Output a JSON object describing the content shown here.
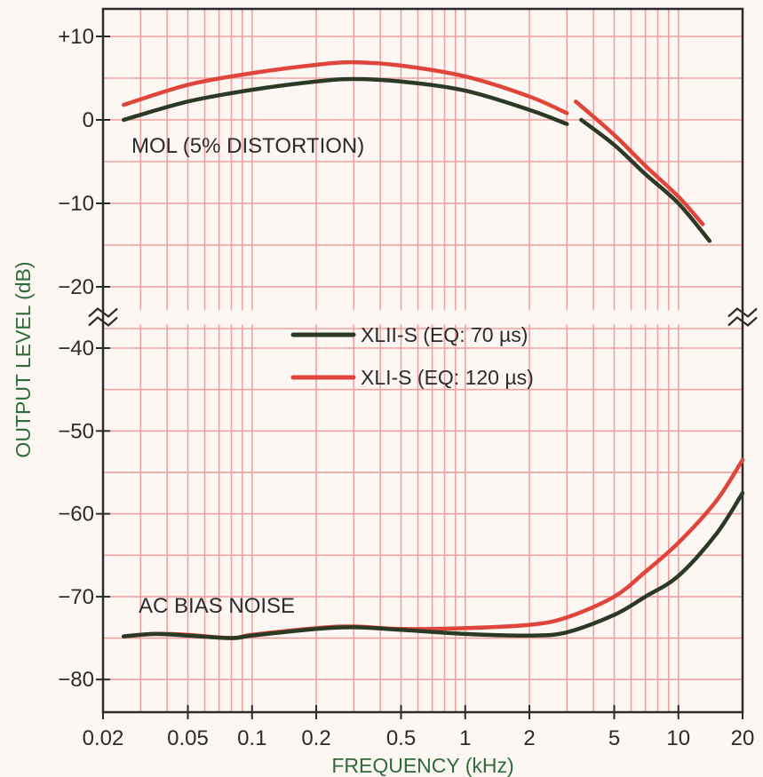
{
  "chart_data": {
    "type": "line",
    "xlabel": "FREQUENCY (kHz)",
    "ylabel": "OUTPUT LEVEL (dB)",
    "x_scale": "log",
    "xlim": [
      0.02,
      20
    ],
    "x_ticks": [
      {
        "value": 0.02,
        "label": "0.02"
      },
      {
        "value": 0.05,
        "label": "0.05"
      },
      {
        "value": 0.1,
        "label": "0.1"
      },
      {
        "value": 0.2,
        "label": "0.2"
      },
      {
        "value": 0.5,
        "label": "0.5"
      },
      {
        "value": 1,
        "label": "1"
      },
      {
        "value": 2,
        "label": "2"
      },
      {
        "value": 5,
        "label": "5"
      },
      {
        "value": 10,
        "label": "10"
      },
      {
        "value": 20,
        "label": "20"
      }
    ],
    "y_ticks_upper": [
      {
        "value": 10,
        "label": "+10"
      },
      {
        "value": 0,
        "label": "0"
      },
      {
        "value": -10,
        "label": "−10"
      },
      {
        "value": -20,
        "label": "−20"
      }
    ],
    "y_ticks_lower": [
      {
        "value": -40,
        "label": "−40"
      },
      {
        "value": -50,
        "label": "−50"
      },
      {
        "value": -60,
        "label": "−60"
      },
      {
        "value": -70,
        "label": "−70"
      },
      {
        "value": -80,
        "label": "−80"
      }
    ],
    "y_axis_break": {
      "from": -20,
      "to": -40
    },
    "grid": true,
    "legend_position": "center",
    "annotations": {
      "mol": "MOL (5% DISTORTION)",
      "noise": "AC BIAS NOISE"
    },
    "series": [
      {
        "name": "XLII-S (EQ: 70 µs)",
        "color": "#2a3a25",
        "mol_segments": [
          [
            [
              0.025,
              0
            ],
            [
              0.05,
              2.2
            ],
            [
              0.1,
              3.6
            ],
            [
              0.2,
              4.6
            ],
            [
              0.3,
              4.9
            ],
            [
              0.5,
              4.6
            ],
            [
              1,
              3.5
            ],
            [
              2,
              1.2
            ],
            [
              3,
              -0.5
            ]
          ],
          [
            [
              3.5,
              0
            ],
            [
              5,
              -3
            ],
            [
              7,
              -6.5
            ],
            [
              10,
              -10
            ],
            [
              14,
              -14.5
            ]
          ]
        ],
        "noise": [
          [
            0.025,
            -74.8
          ],
          [
            0.035,
            -74.5
          ],
          [
            0.05,
            -74.7
          ],
          [
            0.08,
            -75
          ],
          [
            0.1,
            -74.7
          ],
          [
            0.2,
            -73.9
          ],
          [
            0.3,
            -73.7
          ],
          [
            0.5,
            -74
          ],
          [
            1,
            -74.5
          ],
          [
            2,
            -74.7
          ],
          [
            3,
            -74.3
          ],
          [
            5,
            -72.2
          ],
          [
            7,
            -70
          ],
          [
            10,
            -67.5
          ],
          [
            15,
            -62.5
          ],
          [
            20,
            -57.5
          ]
        ]
      },
      {
        "name": "XLI-S (EQ: 120 µs)",
        "color": "#e0453c",
        "mol_segments": [
          [
            [
              0.025,
              1.8
            ],
            [
              0.05,
              4.2
            ],
            [
              0.1,
              5.6
            ],
            [
              0.2,
              6.6
            ],
            [
              0.3,
              6.9
            ],
            [
              0.5,
              6.5
            ],
            [
              1,
              5.2
            ],
            [
              2,
              2.8
            ],
            [
              3,
              0.8
            ]
          ],
          [
            [
              3.3,
              2.2
            ],
            [
              5,
              -1.8
            ],
            [
              7,
              -5.5
            ],
            [
              10,
              -9.2
            ],
            [
              13,
              -12.5
            ]
          ]
        ],
        "noise": [
          [
            0.025,
            -74.8
          ],
          [
            0.035,
            -74.5
          ],
          [
            0.05,
            -74.6
          ],
          [
            0.08,
            -75
          ],
          [
            0.1,
            -74.6
          ],
          [
            0.2,
            -73.8
          ],
          [
            0.3,
            -73.6
          ],
          [
            0.5,
            -73.9
          ],
          [
            1,
            -73.8
          ],
          [
            2,
            -73.4
          ],
          [
            3,
            -72.5
          ],
          [
            5,
            -70
          ],
          [
            7,
            -67
          ],
          [
            10,
            -63.5
          ],
          [
            15,
            -58.5
          ],
          [
            20,
            -53.5
          ]
        ]
      }
    ]
  }
}
